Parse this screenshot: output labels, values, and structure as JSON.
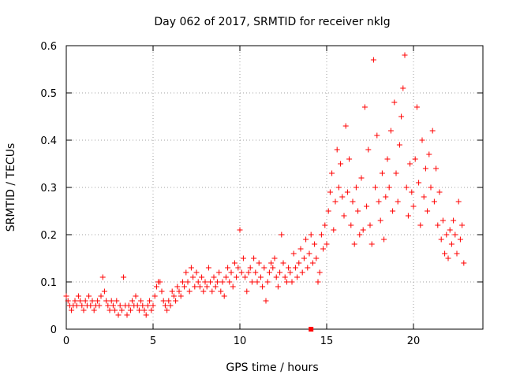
{
  "chart_data": {
    "type": "scatter",
    "title": "Day 062 of 2017, SRMTID for receiver nklg",
    "xlabel": "GPS time / hours",
    "ylabel": "SRMTID / TECUs",
    "xlim": [
      0,
      24
    ],
    "ylim": [
      0,
      0.6
    ],
    "xticks": [
      0,
      5,
      10,
      15,
      20
    ],
    "yticks": [
      0,
      0.1,
      0.2,
      0.3,
      0.4,
      0.5,
      0.6
    ],
    "xtick_labels": [
      "0",
      "5",
      "10",
      "15",
      "20"
    ],
    "ytick_labels": [
      "0",
      "0.1",
      "0.2",
      "0.3",
      "0.4",
      "0.5",
      "0.6"
    ],
    "grid": true,
    "marker": "+",
    "color": "#ff0000",
    "series": [
      {
        "name": "SRMTID",
        "points": [
          [
            0.0,
            0.07
          ],
          [
            0.1,
            0.06
          ],
          [
            0.2,
            0.05
          ],
          [
            0.3,
            0.04
          ],
          [
            0.4,
            0.05
          ],
          [
            0.5,
            0.06
          ],
          [
            0.6,
            0.05
          ],
          [
            0.7,
            0.07
          ],
          [
            0.8,
            0.06
          ],
          [
            0.9,
            0.05
          ],
          [
            1.0,
            0.04
          ],
          [
            1.1,
            0.06
          ],
          [
            1.2,
            0.05
          ],
          [
            1.3,
            0.07
          ],
          [
            1.4,
            0.05
          ],
          [
            1.5,
            0.06
          ],
          [
            1.6,
            0.04
          ],
          [
            1.7,
            0.05
          ],
          [
            1.8,
            0.06
          ],
          [
            1.9,
            0.05
          ],
          [
            2.0,
            0.07
          ],
          [
            2.1,
            0.11
          ],
          [
            2.2,
            0.08
          ],
          [
            2.3,
            0.06
          ],
          [
            2.4,
            0.05
          ],
          [
            2.5,
            0.04
          ],
          [
            2.6,
            0.06
          ],
          [
            2.7,
            0.05
          ],
          [
            2.8,
            0.04
          ],
          [
            2.9,
            0.06
          ],
          [
            3.0,
            0.03
          ],
          [
            3.1,
            0.05
          ],
          [
            3.2,
            0.04
          ],
          [
            3.3,
            0.11
          ],
          [
            3.4,
            0.05
          ],
          [
            3.5,
            0.03
          ],
          [
            3.6,
            0.05
          ],
          [
            3.7,
            0.04
          ],
          [
            3.8,
            0.06
          ],
          [
            3.9,
            0.05
          ],
          [
            4.0,
            0.07
          ],
          [
            4.1,
            0.05
          ],
          [
            4.2,
            0.04
          ],
          [
            4.3,
            0.06
          ],
          [
            4.4,
            0.05
          ],
          [
            4.5,
            0.04
          ],
          [
            4.6,
            0.03
          ],
          [
            4.7,
            0.05
          ],
          [
            4.8,
            0.06
          ],
          [
            4.9,
            0.04
          ],
          [
            5.0,
            0.05
          ],
          [
            5.1,
            0.07
          ],
          [
            5.2,
            0.09
          ],
          [
            5.3,
            0.1
          ],
          [
            5.4,
            0.1
          ],
          [
            5.5,
            0.08
          ],
          [
            5.6,
            0.06
          ],
          [
            5.7,
            0.05
          ],
          [
            5.8,
            0.04
          ],
          [
            5.9,
            0.06
          ],
          [
            6.0,
            0.05
          ],
          [
            6.1,
            0.08
          ],
          [
            6.2,
            0.07
          ],
          [
            6.3,
            0.06
          ],
          [
            6.4,
            0.09
          ],
          [
            6.5,
            0.08
          ],
          [
            6.6,
            0.07
          ],
          [
            6.7,
            0.1
          ],
          [
            6.8,
            0.09
          ],
          [
            6.9,
            0.12
          ],
          [
            7.0,
            0.1
          ],
          [
            7.1,
            0.08
          ],
          [
            7.2,
            0.13
          ],
          [
            7.3,
            0.11
          ],
          [
            7.4,
            0.09
          ],
          [
            7.5,
            0.12
          ],
          [
            7.6,
            0.1
          ],
          [
            7.7,
            0.09
          ],
          [
            7.8,
            0.11
          ],
          [
            7.9,
            0.08
          ],
          [
            8.0,
            0.1
          ],
          [
            8.1,
            0.09
          ],
          [
            8.2,
            0.13
          ],
          [
            8.3,
            0.1
          ],
          [
            8.4,
            0.08
          ],
          [
            8.5,
            0.11
          ],
          [
            8.6,
            0.09
          ],
          [
            8.7,
            0.1
          ],
          [
            8.8,
            0.12
          ],
          [
            8.9,
            0.08
          ],
          [
            9.0,
            0.1
          ],
          [
            9.1,
            0.07
          ],
          [
            9.2,
            0.11
          ],
          [
            9.3,
            0.13
          ],
          [
            9.4,
            0.1
          ],
          [
            9.5,
            0.12
          ],
          [
            9.6,
            0.09
          ],
          [
            9.7,
            0.14
          ],
          [
            9.8,
            0.11
          ],
          [
            9.9,
            0.13
          ],
          [
            10.0,
            0.21
          ],
          [
            10.1,
            0.12
          ],
          [
            10.2,
            0.15
          ],
          [
            10.3,
            0.11
          ],
          [
            10.4,
            0.08
          ],
          [
            10.5,
            0.12
          ],
          [
            10.6,
            0.13
          ],
          [
            10.7,
            0.1
          ],
          [
            10.8,
            0.15
          ],
          [
            10.9,
            0.12
          ],
          [
            11.0,
            0.1
          ],
          [
            11.1,
            0.14
          ],
          [
            11.2,
            0.11
          ],
          [
            11.3,
            0.09
          ],
          [
            11.4,
            0.13
          ],
          [
            11.5,
            0.06
          ],
          [
            11.6,
            0.1
          ],
          [
            11.7,
            0.12
          ],
          [
            11.8,
            0.14
          ],
          [
            11.9,
            0.13
          ],
          [
            12.0,
            0.15
          ],
          [
            12.1,
            0.11
          ],
          [
            12.2,
            0.09
          ],
          [
            12.3,
            0.12
          ],
          [
            12.4,
            0.2
          ],
          [
            12.5,
            0.14
          ],
          [
            12.6,
            0.11
          ],
          [
            12.7,
            0.1
          ],
          [
            12.8,
            0.13
          ],
          [
            12.9,
            0.12
          ],
          [
            13.0,
            0.1
          ],
          [
            13.1,
            0.16
          ],
          [
            13.2,
            0.13
          ],
          [
            13.3,
            0.11
          ],
          [
            13.4,
            0.14
          ],
          [
            13.5,
            0.17
          ],
          [
            13.6,
            0.12
          ],
          [
            13.7,
            0.15
          ],
          [
            13.8,
            0.19
          ],
          [
            13.9,
            0.13
          ],
          [
            14.0,
            0.16
          ],
          [
            14.1,
            0.2
          ],
          [
            14.2,
            0.14
          ],
          [
            14.3,
            0.18
          ],
          [
            14.4,
            0.15
          ],
          [
            14.5,
            0.1
          ],
          [
            14.6,
            0.12
          ],
          [
            14.7,
            0.2
          ],
          [
            14.8,
            0.17
          ],
          [
            14.9,
            0.22
          ],
          [
            15.0,
            0.18
          ],
          [
            15.1,
            0.25
          ],
          [
            15.2,
            0.29
          ],
          [
            15.3,
            0.33
          ],
          [
            15.4,
            0.21
          ],
          [
            15.5,
            0.27
          ],
          [
            15.6,
            0.38
          ],
          [
            15.7,
            0.3
          ],
          [
            15.8,
            0.35
          ],
          [
            15.9,
            0.28
          ],
          [
            16.0,
            0.24
          ],
          [
            16.1,
            0.43
          ],
          [
            16.2,
            0.29
          ],
          [
            16.3,
            0.36
          ],
          [
            16.4,
            0.22
          ],
          [
            16.5,
            0.27
          ],
          [
            16.6,
            0.18
          ],
          [
            16.7,
            0.3
          ],
          [
            16.8,
            0.25
          ],
          [
            16.9,
            0.2
          ],
          [
            17.0,
            0.32
          ],
          [
            17.1,
            0.21
          ],
          [
            17.2,
            0.47
          ],
          [
            17.3,
            0.26
          ],
          [
            17.4,
            0.38
          ],
          [
            17.5,
            0.22
          ],
          [
            17.6,
            0.18
          ],
          [
            17.7,
            0.57
          ],
          [
            17.8,
            0.3
          ],
          [
            17.9,
            0.41
          ],
          [
            18.0,
            0.27
          ],
          [
            18.1,
            0.23
          ],
          [
            18.2,
            0.33
          ],
          [
            18.3,
            0.19
          ],
          [
            18.4,
            0.28
          ],
          [
            18.5,
            0.36
          ],
          [
            18.6,
            0.3
          ],
          [
            18.7,
            0.42
          ],
          [
            18.8,
            0.25
          ],
          [
            18.9,
            0.48
          ],
          [
            19.0,
            0.33
          ],
          [
            19.1,
            0.27
          ],
          [
            19.2,
            0.39
          ],
          [
            19.3,
            0.45
          ],
          [
            19.4,
            0.51
          ],
          [
            19.5,
            0.58
          ],
          [
            19.6,
            0.3
          ],
          [
            19.7,
            0.24
          ],
          [
            19.8,
            0.35
          ],
          [
            19.9,
            0.29
          ],
          [
            20.0,
            0.26
          ],
          [
            20.1,
            0.36
          ],
          [
            20.2,
            0.47
          ],
          [
            20.3,
            0.31
          ],
          [
            20.4,
            0.22
          ],
          [
            20.5,
            0.4
          ],
          [
            20.6,
            0.28
          ],
          [
            20.7,
            0.34
          ],
          [
            20.8,
            0.25
          ],
          [
            20.9,
            0.37
          ],
          [
            21.0,
            0.3
          ],
          [
            21.1,
            0.42
          ],
          [
            21.2,
            0.27
          ],
          [
            21.3,
            0.34
          ],
          [
            21.4,
            0.22
          ],
          [
            21.5,
            0.29
          ],
          [
            21.6,
            0.19
          ],
          [
            21.7,
            0.23
          ],
          [
            21.8,
            0.16
          ],
          [
            21.9,
            0.2
          ],
          [
            22.0,
            0.15
          ],
          [
            22.1,
            0.21
          ],
          [
            22.2,
            0.18
          ],
          [
            22.3,
            0.23
          ],
          [
            22.4,
            0.2
          ],
          [
            22.5,
            0.16
          ],
          [
            22.6,
            0.27
          ],
          [
            22.7,
            0.19
          ],
          [
            22.8,
            0.22
          ],
          [
            22.9,
            0.14
          ]
        ]
      }
    ],
    "annotations": [
      {
        "type": "square-marker",
        "x": 14.1,
        "y": 0.0
      }
    ]
  }
}
